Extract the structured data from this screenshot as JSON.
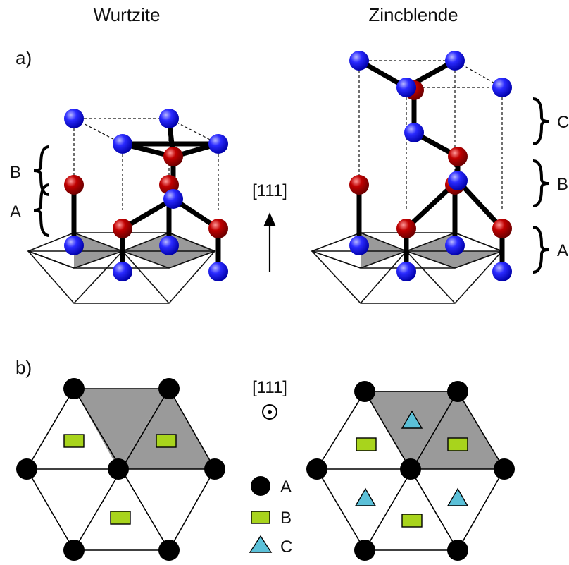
{
  "titles": {
    "left": "Wurtzite",
    "right": "Zincblende"
  },
  "panels": {
    "a": "a)",
    "b": "b)"
  },
  "direction": "[111]",
  "layers_wurtzite": [
    "B",
    "A"
  ],
  "layers_zincblende": [
    "C",
    "B",
    "A"
  ],
  "legend": [
    {
      "symbol": "circle",
      "label": "A"
    },
    {
      "symbol": "rectangle",
      "label": "B"
    },
    {
      "symbol": "triangle",
      "label": "C"
    }
  ],
  "colors": {
    "atom_blue": "#1a1aff",
    "atom_red": "#b30000",
    "shaded": "#9a9a9a",
    "site_A": "#000000",
    "site_B": "#a8d41c",
    "site_C": "#5bc0d8"
  }
}
